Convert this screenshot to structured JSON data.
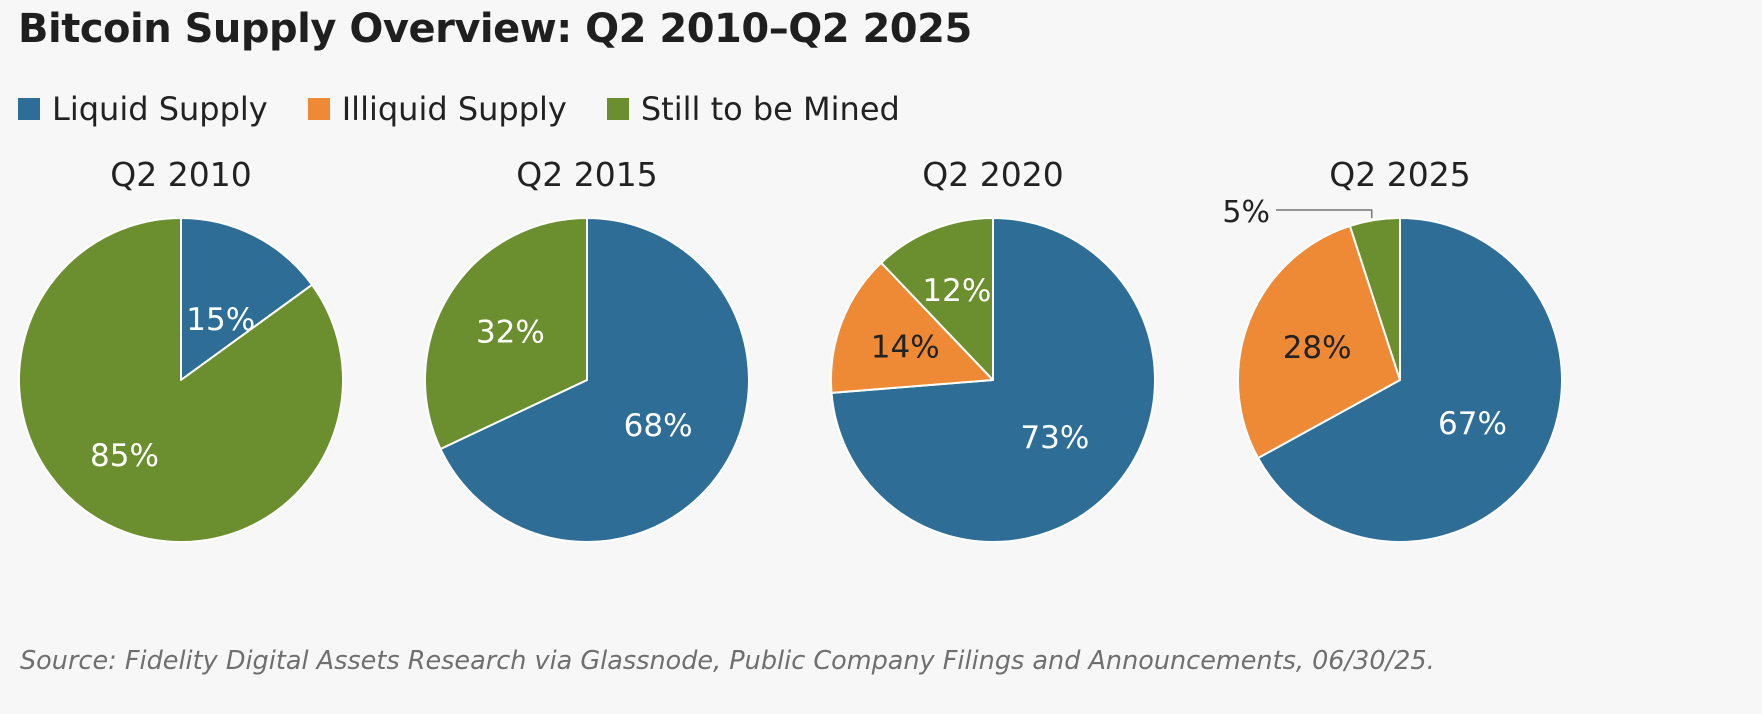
{
  "title": "Bitcoin Supply Overview: Q2 2010–Q2 2025",
  "source": "Source: Fidelity Digital Assets Research via Glassnode, Public Company Filings and Announcements, 06/30/25.",
  "colors": {
    "liquid": "#2e6e96",
    "illiquid": "#ee8935",
    "mined": "#6b8e2e"
  },
  "legend": [
    {
      "label": "Liquid Supply",
      "color": "#2e6e96"
    },
    {
      "label": "Illiquid Supply",
      "color": "#ee8935"
    },
    {
      "label": "Still to be Mined",
      "color": "#6b8e2e"
    }
  ],
  "chart_data": [
    {
      "type": "pie",
      "title": "Q2 2010",
      "slices": [
        {
          "name": "Liquid Supply",
          "value": 15,
          "label": "15%",
          "color": "#2e6e96"
        },
        {
          "name": "Illiquid Supply",
          "value": 0,
          "label": "",
          "color": "#ee8935"
        },
        {
          "name": "Still to be Mined",
          "value": 85,
          "label": "85%",
          "color": "#6b8e2e"
        }
      ]
    },
    {
      "type": "pie",
      "title": "Q2 2015",
      "slices": [
        {
          "name": "Liquid Supply",
          "value": 68,
          "label": "68%",
          "color": "#2e6e96"
        },
        {
          "name": "Illiquid Supply",
          "value": 0,
          "label": "",
          "color": "#ee8935"
        },
        {
          "name": "Still to be Mined",
          "value": 32,
          "label": "32%",
          "color": "#6b8e2e"
        }
      ]
    },
    {
      "type": "pie",
      "title": "Q2 2020",
      "slices": [
        {
          "name": "Liquid Supply",
          "value": 73,
          "label": "73%",
          "color": "#2e6e96"
        },
        {
          "name": "Illiquid Supply",
          "value": 14,
          "label": "14%",
          "color": "#ee8935"
        },
        {
          "name": "Still to be Mined",
          "value": 12,
          "label": "12%",
          "color": "#6b8e2e"
        }
      ]
    },
    {
      "type": "pie",
      "title": "Q2 2025",
      "slices": [
        {
          "name": "Liquid Supply",
          "value": 67,
          "label": "67%",
          "color": "#2e6e96"
        },
        {
          "name": "Illiquid Supply",
          "value": 28,
          "label": "28%",
          "color": "#ee8935"
        },
        {
          "name": "Still to be Mined",
          "value": 5,
          "label": "5%",
          "color": "#6b8e2e"
        }
      ]
    }
  ]
}
